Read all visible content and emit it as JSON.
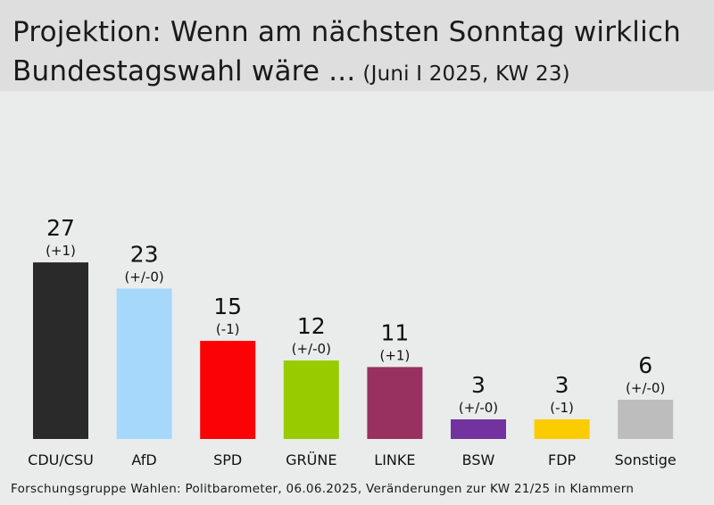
{
  "header": {
    "title_line1": "Projektion: Wenn am nächsten Sonntag wirklich",
    "title_line2": "Bundestagswahl wäre ...",
    "subtitle": "(Juni I 2025, KW 23)"
  },
  "footer": {
    "source": "Forschungsgruppe Wahlen: Politbarometer, 06.06.2025, Veränderungen zur KW 21/25 in Klammern"
  },
  "chart_data": {
    "type": "bar",
    "title": "Projektion: Wenn am nächsten Sonntag wirklich Bundestagswahl wäre ...",
    "subtitle": "(Juni I 2025, KW 23)",
    "categories": [
      "CDU/CSU",
      "AfD",
      "SPD",
      "GRÜNE",
      "LINKE",
      "BSW",
      "FDP",
      "Sonstige"
    ],
    "values": [
      27,
      23,
      15,
      12,
      11,
      3,
      3,
      6
    ],
    "changes": [
      "(+1)",
      "(+/-0)",
      "(-1)",
      "(+/-0)",
      "(+1)",
      "(+/-0)",
      "(-1)",
      "(+/-0)"
    ],
    "colors": [
      "#2a2a2a",
      "#a6d8fb",
      "#fb0306",
      "#98cb00",
      "#983060",
      "#7233a0",
      "#fbcd00",
      "#bdbdbd"
    ],
    "grid": false,
    "legend": "none"
  }
}
